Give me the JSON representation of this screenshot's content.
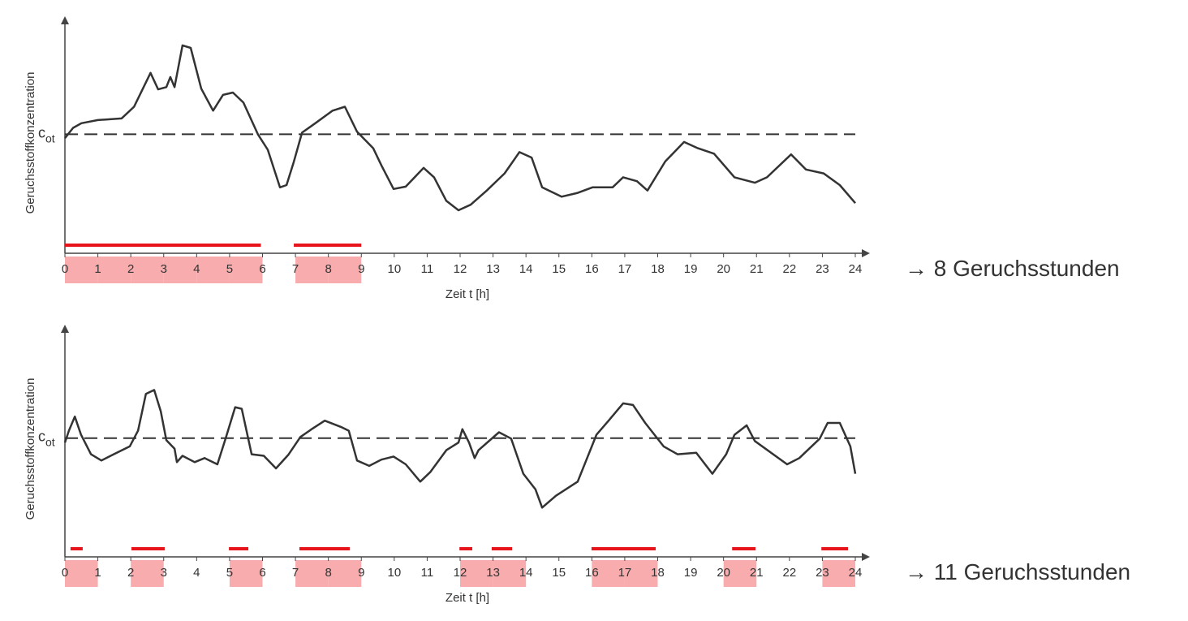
{
  "chart_data": [
    {
      "type": "line",
      "ylabel": "Geruchsstoffkonzentration",
      "xlabel": "Zeit t [h]",
      "threshold_label": "c",
      "threshold_label_sub": "ot",
      "threshold": 52,
      "xlim": [
        0,
        24
      ],
      "ylim": [
        0,
        100
      ],
      "xticks": [
        0,
        1,
        2,
        3,
        4,
        5,
        6,
        7,
        8,
        9,
        10,
        11,
        12,
        13,
        14,
        15,
        16,
        17,
        18,
        19,
        20,
        21,
        22,
        23,
        24
      ],
      "color": "#333333",
      "x": [
        0,
        0.25,
        0.5,
        1.0,
        1.72,
        2.1,
        2.6,
        2.83,
        3.08,
        3.2,
        3.33,
        3.57,
        3.82,
        4.14,
        4.5,
        4.8,
        5.1,
        5.42,
        5.86,
        6.16,
        6.53,
        6.73,
        6.95,
        7.2,
        7.64,
        8.13,
        8.5,
        8.87,
        9.36,
        9.61,
        9.98,
        10.35,
        10.89,
        11.21,
        11.58,
        11.95,
        12.32,
        12.81,
        13.35,
        13.8,
        14.17,
        14.49,
        15.08,
        15.57,
        16.02,
        16.63,
        16.95,
        17.37,
        17.69,
        18.23,
        18.8,
        19.22,
        19.71,
        20.33,
        20.95,
        21.32,
        22.05,
        22.5,
        23.04,
        23.53,
        24
      ],
      "values": [
        50.3,
        54.8,
        56.8,
        58.2,
        58.9,
        64,
        78.8,
        71.6,
        72.6,
        77,
        72.6,
        90.8,
        89.7,
        71.9,
        62.3,
        69.2,
        70.2,
        65.8,
        52,
        45.2,
        28.8,
        29.8,
        40,
        52.7,
        57.2,
        62.3,
        64,
        53.1,
        45.9,
        38.4,
        28.1,
        29.1,
        37.3,
        33.2,
        22.9,
        18.8,
        21.2,
        27.4,
        34.9,
        44.2,
        41.8,
        28.8,
        24.7,
        26.4,
        28.8,
        28.8,
        33.2,
        31.5,
        27.4,
        40.1,
        48.6,
        45.9,
        43.5,
        33.2,
        30.8,
        33.2,
        43.2,
        36.6,
        34.9,
        29.8,
        21.9
      ],
      "exceedances": [
        [
          0,
          5.95
        ],
        [
          6.95,
          9
        ]
      ],
      "exceedance_color": "#e8141b",
      "odour_hours": [
        0,
        1,
        2,
        3,
        4,
        5,
        7,
        8
      ],
      "odour_hour_color": "#f8acad",
      "result": "→ 8 Geruchsstunden"
    },
    {
      "type": "line",
      "ylabel": "Geruchsstoffkonzentration",
      "xlabel": "Zeit t [h]",
      "threshold_label": "c",
      "threshold_label_sub": "ot",
      "threshold": 53,
      "xlim": [
        0,
        24
      ],
      "ylim": [
        0,
        100
      ],
      "xticks": [
        0,
        1,
        2,
        3,
        4,
        5,
        6,
        7,
        8,
        9,
        10,
        11,
        12,
        13,
        14,
        15,
        16,
        17,
        18,
        19,
        20,
        21,
        22,
        23,
        24
      ],
      "color": "#333333",
      "x": [
        0,
        0.12,
        0.3,
        0.49,
        0.79,
        1.11,
        1.48,
        1.97,
        2.22,
        2.46,
        2.71,
        2.91,
        3.08,
        3.33,
        3.4,
        3.57,
        3.94,
        4.24,
        4.63,
        4.88,
        5.17,
        5.37,
        5.67,
        6.04,
        6.41,
        6.78,
        7.15,
        7.52,
        7.89,
        8.38,
        8.62,
        8.87,
        9.24,
        9.61,
        9.98,
        10.35,
        10.79,
        11.09,
        11.58,
        11.95,
        12.07,
        12.27,
        12.44,
        12.56,
        13.18,
        13.55,
        13.92,
        14.29,
        14.49,
        14.91,
        15.57,
        16.14,
        16.51,
        16.95,
        17.25,
        17.62,
        18.18,
        18.6,
        19.17,
        19.66,
        20.08,
        20.33,
        20.7,
        20.95,
        21.93,
        22.3,
        22.92,
        23.16,
        23.53,
        23.85,
        24
      ],
      "values": [
        51,
        56.3,
        62.6,
        54.5,
        45.8,
        43,
        45.8,
        49.3,
        56.3,
        72.7,
        74.5,
        65,
        52.1,
        48.3,
        42.3,
        45.1,
        42.3,
        44.1,
        41.3,
        52.8,
        66.8,
        66.1,
        45.8,
        45.1,
        39.5,
        45.5,
        53.5,
        57.3,
        60.8,
        58,
        56.3,
        43,
        40.6,
        43.4,
        44.8,
        41.3,
        33.6,
        37.8,
        47.6,
        51,
        57,
        51,
        44.1,
        47.6,
        55.6,
        52.8,
        37.1,
        30.1,
        22,
        27.3,
        33.6,
        54.5,
        60.8,
        68.5,
        67.8,
        59.8,
        49.3,
        45.8,
        46.5,
        37.1,
        45.8,
        54.5,
        58.7,
        51.7,
        41.3,
        44.1,
        52.8,
        59.8,
        59.8,
        49.3,
        37.1
      ],
      "exceedances": [
        [
          0.17,
          0.54
        ],
        [
          2.02,
          3.03
        ],
        [
          4.98,
          5.57
        ],
        [
          7.12,
          8.65
        ],
        [
          11.98,
          12.37
        ],
        [
          12.96,
          13.58
        ],
        [
          15.99,
          17.94
        ],
        [
          20.26,
          20.97
        ],
        [
          22.97,
          23.78
        ]
      ],
      "exceedance_color": "#e8141b",
      "odour_hours": [
        0,
        2,
        5,
        7,
        8,
        12,
        13,
        16,
        17,
        20,
        23
      ],
      "odour_hour_color": "#f8acad",
      "result": "→ 11 Geruchsstunden"
    }
  ]
}
